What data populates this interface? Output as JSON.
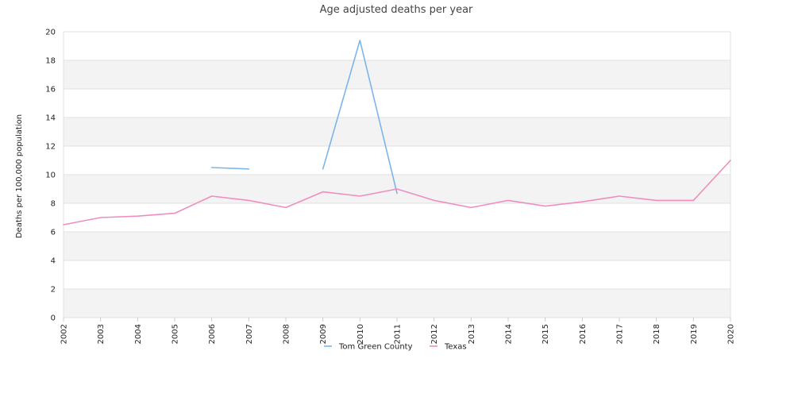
{
  "chart_data": {
    "type": "line",
    "title": "Age adjusted deaths per year",
    "ylabel": "Deaths per 100,000 population",
    "xlabel": "",
    "ylim": [
      0,
      20
    ],
    "yticks": [
      0,
      2,
      4,
      6,
      8,
      10,
      12,
      14,
      16,
      18,
      20
    ],
    "x": [
      "2002",
      "2003",
      "2004",
      "2005",
      "2006",
      "2007",
      "2008",
      "2009",
      "2010",
      "2011",
      "2012",
      "2013",
      "2014",
      "2015",
      "2016",
      "2017",
      "2018",
      "2019",
      "2020"
    ],
    "series": [
      {
        "name": "Tom Green County",
        "color": "#7cb5ec",
        "values": [
          null,
          null,
          null,
          null,
          10.5,
          10.4,
          null,
          10.4,
          19.4,
          8.7,
          null,
          null,
          null,
          null,
          null,
          null,
          null,
          null,
          null
        ]
      },
      {
        "name": "Texas",
        "color": "#f08dbf",
        "values": [
          6.5,
          7.0,
          7.1,
          7.3,
          8.5,
          8.2,
          7.7,
          8.8,
          8.5,
          9.0,
          8.2,
          7.7,
          8.2,
          7.8,
          8.1,
          8.5,
          8.2,
          8.2,
          11.0
        ]
      }
    ],
    "grid": true,
    "band_colors": [
      "#f3f3f3",
      "#ffffff"
    ],
    "legend": "bottom-center"
  }
}
